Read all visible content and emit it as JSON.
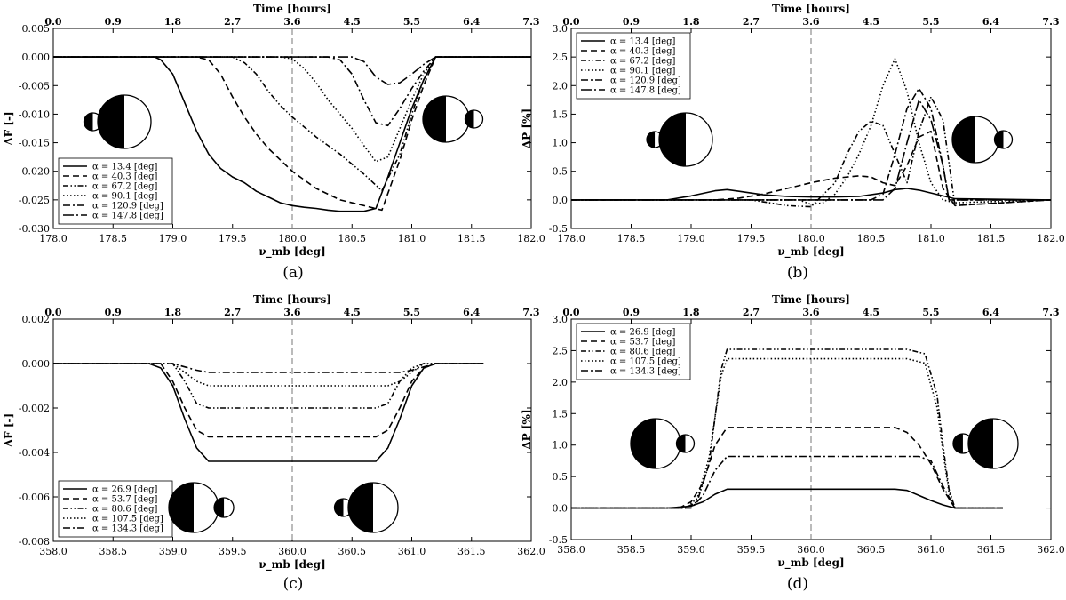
{
  "figure": {
    "colors": {
      "line": "#000000",
      "background": "#ffffff",
      "dashed_marker": "#777777"
    }
  },
  "chart_data": [
    {
      "id": "a",
      "type": "line",
      "caption": "(a)",
      "xlabel": "ν_mb [deg]",
      "ylabel": "ΔF [-]",
      "top_xlabel": "Time [hours]",
      "xlim": [
        178.0,
        182.0
      ],
      "ylim": [
        -0.03,
        0.005
      ],
      "xticks": [
        "178.0",
        "178.5",
        "179.0",
        "179.5",
        "180.0",
        "180.5",
        "181.0",
        "181.5",
        "182.0"
      ],
      "yticks": [
        "0.005",
        "0.000",
        "-0.005",
        "-0.010",
        "-0.015",
        "-0.020",
        "-0.025",
        "-0.030"
      ],
      "top_ticks": [
        "0.0",
        "0.9",
        "1.8",
        "2.7",
        "3.6",
        "4.5",
        "5.5",
        "6.4",
        "7.3"
      ],
      "vline_x": 180.0,
      "legend_position": "lower-left",
      "icon_left": "small-left",
      "icon_right": "small-right",
      "series": [
        {
          "name": "α = 13.4   [deg]",
          "style": "solid",
          "x": [
            178.0,
            178.85,
            178.9,
            179.0,
            179.1,
            179.2,
            179.3,
            179.4,
            179.5,
            179.6,
            179.7,
            179.8,
            179.9,
            180.0,
            180.1,
            180.2,
            180.3,
            180.4,
            180.5,
            180.6,
            180.7,
            180.8,
            180.9,
            181.0,
            181.1,
            181.2,
            182.0
          ],
          "y": [
            0.0,
            0.0,
            -0.0005,
            -0.003,
            -0.008,
            -0.013,
            -0.017,
            -0.0195,
            -0.021,
            -0.022,
            -0.0235,
            -0.0245,
            -0.0255,
            -0.026,
            -0.0263,
            -0.0265,
            -0.0268,
            -0.027,
            -0.027,
            -0.027,
            -0.0265,
            -0.021,
            -0.015,
            -0.009,
            -0.004,
            0.0,
            0.0
          ]
        },
        {
          "name": "α = 40.3   [deg]",
          "style": "dash",
          "x": [
            178.0,
            179.2,
            179.3,
            179.4,
            179.5,
            179.6,
            179.7,
            179.8,
            179.9,
            180.0,
            180.2,
            180.4,
            180.6,
            180.75,
            180.9,
            181.0,
            181.1,
            181.2,
            182.0
          ],
          "y": [
            0.0,
            0.0,
            -0.0005,
            -0.003,
            -0.007,
            -0.0105,
            -0.0135,
            -0.016,
            -0.018,
            -0.02,
            -0.023,
            -0.025,
            -0.026,
            -0.0268,
            -0.018,
            -0.011,
            -0.005,
            0.0,
            0.0
          ]
        },
        {
          "name": "α = 67.2   [deg]",
          "style": "dashdotdot",
          "x": [
            178.0,
            179.5,
            179.6,
            179.7,
            179.8,
            179.9,
            180.0,
            180.2,
            180.4,
            180.6,
            180.75,
            180.9,
            181.0,
            181.1,
            181.2,
            182.0
          ],
          "y": [
            0.0,
            0.0,
            -0.001,
            -0.003,
            -0.006,
            -0.0085,
            -0.0105,
            -0.014,
            -0.017,
            -0.0205,
            -0.0234,
            -0.017,
            -0.01,
            -0.004,
            0.0,
            0.0
          ]
        },
        {
          "name": "α = 90.1   [deg]",
          "style": "dot",
          "x": [
            178.0,
            179.9,
            180.0,
            180.1,
            180.2,
            180.3,
            180.4,
            180.5,
            180.6,
            180.7,
            180.8,
            180.9,
            181.0,
            181.1,
            181.2,
            182.0
          ],
          "y": [
            0.0,
            0.0,
            -0.0003,
            -0.002,
            -0.0045,
            -0.0075,
            -0.01,
            -0.0125,
            -0.0155,
            -0.0183,
            -0.0175,
            -0.0125,
            -0.0075,
            -0.003,
            0.0,
            0.0
          ]
        },
        {
          "name": "α = 120.9   [deg]",
          "style": "dashdot",
          "x": [
            178.0,
            180.3,
            180.4,
            180.5,
            180.6,
            180.7,
            180.8,
            180.9,
            181.0,
            181.1,
            181.2,
            182.0
          ],
          "y": [
            0.0,
            0.0,
            -0.0005,
            -0.003,
            -0.0075,
            -0.0115,
            -0.012,
            -0.009,
            -0.0055,
            -0.0025,
            0.0,
            0.0
          ]
        },
        {
          "name": "α = 147.8   [deg]",
          "style": "longdashdot",
          "x": [
            178.0,
            180.5,
            180.6,
            180.7,
            180.8,
            180.9,
            181.0,
            181.1,
            181.2,
            182.0
          ],
          "y": [
            0.0,
            0.0,
            -0.0008,
            -0.0035,
            -0.0048,
            -0.0045,
            -0.003,
            -0.0013,
            0.0,
            0.0
          ]
        }
      ]
    },
    {
      "id": "b",
      "type": "line",
      "caption": "(b)",
      "xlabel": "ν_mb [deg]",
      "ylabel": "ΔP [%]",
      "top_xlabel": "Time [hours]",
      "xlim": [
        178.0,
        182.0
      ],
      "ylim": [
        -0.5,
        3.0
      ],
      "xticks": [
        "178.0",
        "178.5",
        "179.0",
        "179.5",
        "180.0",
        "180.5",
        "181.0",
        "181.5",
        "182.0"
      ],
      "yticks": [
        "3.0",
        "2.5",
        "2.0",
        "1.5",
        "1.0",
        "0.5",
        "0.0",
        "-0.5"
      ],
      "top_ticks": [
        "0.0",
        "0.9",
        "1.8",
        "2.7",
        "3.6",
        "4.5",
        "5.5",
        "6.4",
        "7.3"
      ],
      "vline_x": 180.0,
      "legend_position": "upper-left",
      "icon_left": "small-left",
      "icon_right": "small-right",
      "series": [
        {
          "name": "α = 13.4   [deg]",
          "style": "solid",
          "x": [
            178.0,
            178.8,
            179.0,
            179.2,
            179.3,
            179.4,
            179.6,
            179.8,
            180.0,
            180.2,
            180.4,
            180.6,
            180.7,
            180.8,
            180.9,
            181.0,
            181.2,
            182.0
          ],
          "y": [
            0.0,
            0.0,
            0.07,
            0.16,
            0.18,
            0.15,
            0.09,
            0.06,
            0.05,
            0.05,
            0.06,
            0.12,
            0.18,
            0.2,
            0.17,
            0.12,
            0.02,
            0.0
          ]
        },
        {
          "name": "α = 40.3   [deg]",
          "style": "dash",
          "x": [
            178.0,
            179.2,
            179.4,
            179.6,
            179.8,
            180.0,
            180.2,
            180.4,
            180.5,
            180.6,
            180.7,
            180.8,
            180.9,
            181.0,
            181.1,
            181.2,
            182.0
          ],
          "y": [
            0.0,
            0.0,
            0.03,
            0.1,
            0.2,
            0.3,
            0.38,
            0.42,
            0.4,
            0.3,
            0.25,
            0.6,
            1.1,
            1.2,
            0.2,
            -0.1,
            0.0
          ]
        },
        {
          "name": "α = 67.2   [deg]",
          "style": "dashdotdot",
          "x": [
            178.0,
            179.5,
            179.8,
            180.0,
            180.2,
            180.3,
            180.4,
            180.5,
            180.6,
            180.7,
            180.8,
            180.9,
            181.0,
            181.1,
            181.2,
            182.0
          ],
          "y": [
            0.0,
            0.0,
            -0.1,
            -0.12,
            0.3,
            0.8,
            1.2,
            1.38,
            1.3,
            0.8,
            0.3,
            1.2,
            1.8,
            1.4,
            -0.1,
            0.0
          ]
        },
        {
          "name": "α = 90.1   [deg]",
          "style": "dot",
          "x": [
            178.0,
            179.9,
            180.0,
            180.1,
            180.2,
            180.3,
            180.4,
            180.5,
            180.6,
            180.7,
            180.8,
            180.9,
            181.0,
            181.1,
            181.2,
            182.0
          ],
          "y": [
            0.0,
            0.0,
            -0.08,
            -0.05,
            0.1,
            0.4,
            0.8,
            1.3,
            2.0,
            2.47,
            1.9,
            1.0,
            0.3,
            0.0,
            -0.05,
            0.0
          ]
        },
        {
          "name": "α = 120.9   [deg]",
          "style": "dashdot",
          "x": [
            178.0,
            180.5,
            180.6,
            180.7,
            180.8,
            180.9,
            181.0,
            181.1,
            181.15,
            182.0
          ],
          "y": [
            0.0,
            0.0,
            0.1,
            0.8,
            1.6,
            1.95,
            1.6,
            0.6,
            0.0,
            0.0
          ]
        },
        {
          "name": "α = 147.8   [deg]",
          "style": "longdashdot",
          "x": [
            178.0,
            180.6,
            180.7,
            180.8,
            180.9,
            181.0,
            181.1,
            181.15,
            182.0
          ],
          "y": [
            0.0,
            0.0,
            0.2,
            1.0,
            1.75,
            1.4,
            0.6,
            0.0,
            0.0
          ]
        }
      ]
    },
    {
      "id": "c",
      "type": "line",
      "caption": "(c)",
      "xlabel": "ν_mb [deg]",
      "ylabel": "ΔF [-]",
      "top_xlabel": "Time [hours]",
      "xlim": [
        358.0,
        362.0
      ],
      "ylim": [
        -0.008,
        0.002
      ],
      "xticks": [
        "358.0",
        "358.5",
        "359.0",
        "359.5",
        "360.0",
        "360.5",
        "361.0",
        "361.5",
        "362.0"
      ],
      "yticks": [
        "0.002",
        "0.000",
        "-0.002",
        "-0.004",
        "-0.006",
        "-0.008"
      ],
      "top_ticks": [
        "0.0",
        "0.9",
        "1.8",
        "2.7",
        "3.6",
        "4.5",
        "5.5",
        "6.4",
        "7.3"
      ],
      "vline_x": 360.0,
      "legend_position": "lower-left",
      "icon_left": "small-right",
      "icon_right": "small-left",
      "series": [
        {
          "name": "α = 26.9   [deg]",
          "style": "solid",
          "x": [
            358.0,
            358.8,
            358.9,
            359.0,
            359.1,
            359.2,
            359.3,
            360.7,
            360.8,
            360.9,
            361.0,
            361.1,
            361.2,
            361.6
          ],
          "y": [
            0.0,
            0.0,
            -0.0002,
            -0.001,
            -0.0025,
            -0.0038,
            -0.0044,
            -0.0044,
            -0.0038,
            -0.0025,
            -0.001,
            -0.0002,
            0.0,
            0.0
          ]
        },
        {
          "name": "α = 53.7   [deg]",
          "style": "dash",
          "x": [
            358.0,
            358.9,
            359.0,
            359.1,
            359.2,
            359.3,
            360.7,
            360.8,
            360.9,
            361.0,
            361.1,
            361.2,
            361.6
          ],
          "y": [
            0.0,
            0.0,
            -0.0008,
            -0.002,
            -0.003,
            -0.0033,
            -0.0033,
            -0.003,
            -0.002,
            -0.0008,
            -0.0002,
            0.0,
            0.0
          ]
        },
        {
          "name": "α = 80.6   [deg]",
          "style": "dashdotdot",
          "x": [
            358.0,
            359.0,
            359.1,
            359.2,
            359.3,
            360.7,
            360.8,
            360.9,
            361.0,
            361.1,
            361.2,
            361.6
          ],
          "y": [
            0.0,
            0.0,
            -0.0008,
            -0.0018,
            -0.002,
            -0.002,
            -0.0018,
            -0.0008,
            -0.0002,
            0.0,
            0.0,
            0.0
          ]
        },
        {
          "name": "α = 107.5   [deg]",
          "style": "dot",
          "x": [
            358.0,
            359.0,
            359.1,
            359.2,
            359.3,
            360.7,
            360.8,
            360.9,
            361.0,
            361.1,
            361.6
          ],
          "y": [
            0.0,
            0.0,
            -0.0004,
            -0.0008,
            -0.001,
            -0.001,
            -0.001,
            -0.0008,
            -0.0004,
            0.0,
            0.0
          ]
        },
        {
          "name": "α = 134.3   [deg]",
          "style": "dashdot",
          "x": [
            358.0,
            359.0,
            359.2,
            359.3,
            360.7,
            360.9,
            361.0,
            361.2,
            361.6
          ],
          "y": [
            0.0,
            0.0,
            -0.0003,
            -0.0004,
            -0.0004,
            -0.0004,
            -0.0003,
            0.0,
            0.0
          ]
        }
      ]
    },
    {
      "id": "d",
      "type": "line",
      "caption": "(d)",
      "xlabel": "ν_mb [deg]",
      "ylabel": "ΔP [%]",
      "top_xlabel": "Time [hours]",
      "xlim": [
        358.0,
        362.0
      ],
      "ylim": [
        -0.5,
        3.0
      ],
      "xticks": [
        "358.0",
        "358.5",
        "359.0",
        "359.5",
        "360.0",
        "360.5",
        "361.0",
        "361.5",
        "362.0"
      ],
      "yticks": [
        "3.0",
        "2.5",
        "2.0",
        "1.5",
        "1.0",
        "0.5",
        "0.0",
        "-0.5"
      ],
      "top_ticks": [
        "0.0",
        "0.9",
        "1.8",
        "2.7",
        "3.6",
        "4.5",
        "5.5",
        "6.4",
        "7.3"
      ],
      "vline_x": 360.0,
      "legend_position": "upper-left",
      "icon_left": "small-right",
      "icon_right": "small-left",
      "series": [
        {
          "name": "α = 26.9   [deg]",
          "style": "solid",
          "x": [
            358.0,
            358.8,
            359.0,
            359.1,
            359.2,
            359.3,
            360.7,
            360.8,
            360.9,
            361.0,
            361.1,
            361.2,
            361.6
          ],
          "y": [
            0.0,
            0.0,
            0.03,
            0.1,
            0.22,
            0.3,
            0.3,
            0.28,
            0.2,
            0.12,
            0.05,
            0.0,
            0.0
          ]
        },
        {
          "name": "α = 53.7   [deg]",
          "style": "dash",
          "x": [
            358.0,
            358.9,
            359.0,
            359.1,
            359.2,
            359.3,
            360.7,
            360.8,
            360.9,
            361.0,
            361.1,
            361.2,
            361.6
          ],
          "y": [
            0.0,
            0.0,
            0.1,
            0.4,
            1.0,
            1.28,
            1.28,
            1.2,
            1.0,
            0.7,
            0.3,
            0.0,
            0.0
          ]
        },
        {
          "name": "α = 80.6   [deg]",
          "style": "dashdotdot",
          "x": [
            358.0,
            358.95,
            359.05,
            359.15,
            359.25,
            359.3,
            360.8,
            360.95,
            361.05,
            361.1,
            361.15,
            361.2,
            361.6
          ],
          "y": [
            0.0,
            0.0,
            0.1,
            0.7,
            2.2,
            2.52,
            2.52,
            2.45,
            1.8,
            1.0,
            0.3,
            0.0,
            0.0
          ]
        },
        {
          "name": "α = 107.5   [deg]",
          "style": "dot",
          "x": [
            358.0,
            358.95,
            359.05,
            359.15,
            359.25,
            359.3,
            360.8,
            360.95,
            361.05,
            361.1,
            361.15,
            361.2,
            361.6
          ],
          "y": [
            0.0,
            0.0,
            0.15,
            0.8,
            2.1,
            2.37,
            2.37,
            2.3,
            1.6,
            0.9,
            0.25,
            0.0,
            0.0
          ]
        },
        {
          "name": "α = 134.3   [deg]",
          "style": "dashdot",
          "x": [
            358.0,
            359.0,
            359.1,
            359.2,
            359.3,
            360.9,
            361.0,
            361.1,
            361.2,
            361.6
          ],
          "y": [
            0.0,
            0.0,
            0.2,
            0.6,
            0.82,
            0.82,
            0.75,
            0.35,
            0.0,
            0.0
          ]
        }
      ]
    }
  ]
}
